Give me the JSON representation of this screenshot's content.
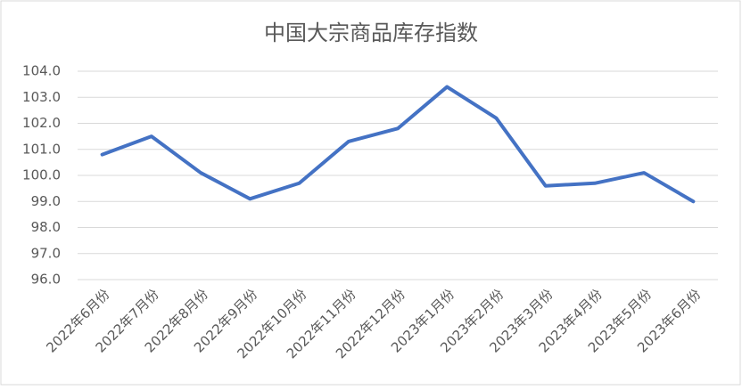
{
  "chart_data": {
    "type": "line",
    "title": "中国大宗商品库存指数",
    "categories": [
      "2022年6月份",
      "2022年7月份",
      "2022年8月份",
      "2022年9月份",
      "2022年10月份",
      "2022年11月份",
      "2022年12月份",
      "2023年1月份",
      "2023年2月份",
      "2023年3月份",
      "2023年4月份",
      "2023年5月份",
      "2023年6月份"
    ],
    "values": [
      100.8,
      101.5,
      100.1,
      99.1,
      99.7,
      101.3,
      101.8,
      103.4,
      102.2,
      99.6,
      99.7,
      100.1,
      99.0
    ],
    "color": "#4472c4",
    "ylim": [
      96,
      104
    ],
    "yticks": [
      {
        "value": 96,
        "label": "96.0"
      },
      {
        "value": 97,
        "label": "97.0"
      },
      {
        "value": 98,
        "label": "98.0"
      },
      {
        "value": 99,
        "label": "99.0"
      },
      {
        "value": 100,
        "label": "100.0"
      },
      {
        "value": 101,
        "label": "101.0"
      },
      {
        "value": 102,
        "label": "102.0"
      },
      {
        "value": 103,
        "label": "103.0"
      },
      {
        "value": 104,
        "label": "104.0"
      }
    ],
    "grid": true
  }
}
